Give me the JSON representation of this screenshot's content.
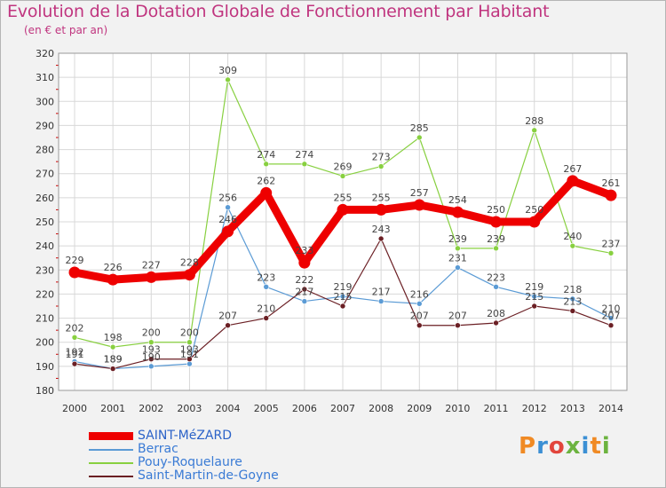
{
  "header": {
    "title": "Evolution de la Dotation Globale de Fonctionnement par Habitant",
    "subtitle": "(en € et par an)"
  },
  "brand": {
    "letters": [
      "P",
      "r",
      "o",
      "x",
      "i",
      "t",
      "i"
    ],
    "colors": [
      "#f08a24",
      "#3b8fd4",
      "#e2453c",
      "#6cb33f",
      "#3b8fd4",
      "#f08a24",
      "#6cb33f"
    ]
  },
  "chart_data": {
    "type": "line",
    "x": [
      "2000",
      "2001",
      "2002",
      "2003",
      "2004",
      "2005",
      "2006",
      "2007",
      "2008",
      "2009",
      "2010",
      "2011",
      "2012",
      "2013",
      "2014"
    ],
    "ylim": [
      180,
      320
    ],
    "yticks": [
      180,
      190,
      200,
      210,
      220,
      230,
      240,
      250,
      260,
      270,
      280,
      290,
      300,
      310,
      320
    ],
    "grid": true,
    "legend_position": "bottom-left",
    "series": [
      {
        "name": "SAINT-MéZARD",
        "color": "#ee0000",
        "emphasis": true,
        "values": [
          229,
          226,
          227,
          228,
          246,
          262,
          233,
          255,
          255,
          257,
          254,
          250,
          250,
          267,
          261
        ],
        "labels": [
          "229",
          "226",
          "227",
          "228",
          "246",
          "262",
          "233",
          "255",
          "255",
          "257",
          "254",
          "250",
          "250",
          "267",
          "261"
        ]
      },
      {
        "name": "Berrac",
        "color": "#5b9bd5",
        "emphasis": false,
        "values": [
          192,
          189,
          190,
          191,
          256,
          223,
          217,
          219,
          217,
          216,
          231,
          223,
          219,
          218,
          210
        ],
        "labels": [
          "192",
          "189",
          "190",
          "191",
          "256",
          "223",
          "217",
          "219",
          "217",
          "216",
          "231",
          "223",
          "219",
          "218",
          "210"
        ]
      },
      {
        "name": "Pouy-Roquelaure",
        "color": "#88d040",
        "emphasis": false,
        "values": [
          202,
          198,
          200,
          200,
          309,
          274,
          274,
          269,
          273,
          285,
          239,
          239,
          288,
          240,
          237
        ],
        "labels": [
          "202",
          "198",
          "200",
          "200",
          "309",
          "274",
          "274",
          "269",
          "273",
          "285",
          "239",
          "239",
          "288",
          "240",
          "237"
        ]
      },
      {
        "name": "Saint-Martin-de-Goyne",
        "color": "#6b1f24",
        "emphasis": false,
        "values": [
          191,
          189,
          193,
          193,
          207,
          210,
          222,
          215,
          243,
          207,
          207,
          208,
          215,
          213,
          207
        ],
        "labels": [
          "191",
          "189",
          "193",
          "193",
          "207",
          "210",
          "222",
          "215",
          "243",
          "207",
          "207",
          "208",
          "215",
          "213",
          "207"
        ]
      }
    ]
  }
}
